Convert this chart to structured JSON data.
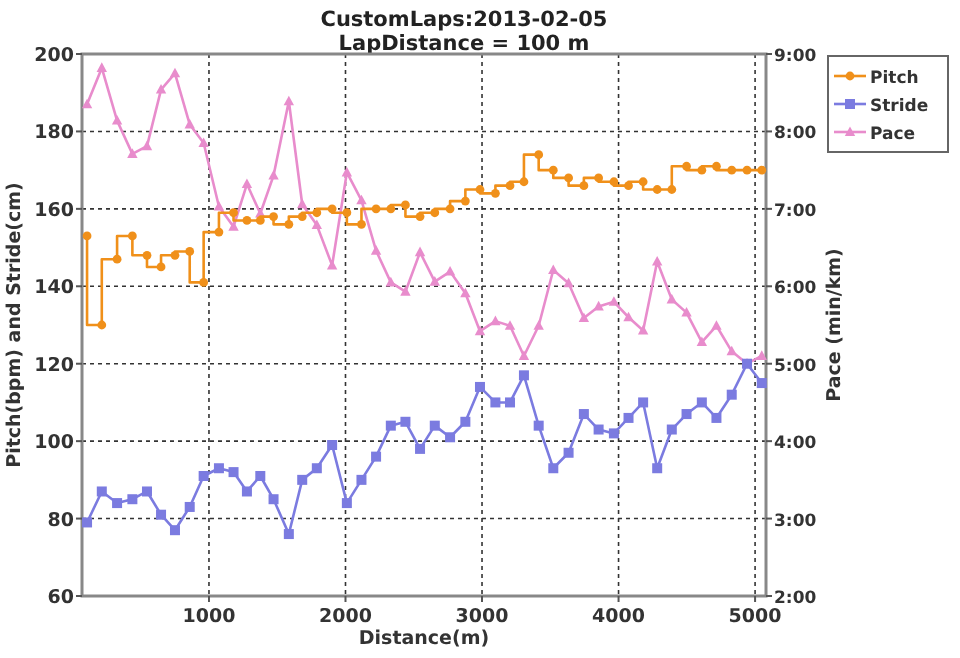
{
  "chart_data": {
    "type": "line",
    "title": "CustomLaps:2013-02-05",
    "subtitle": "LapDistance = 100 m",
    "xlabel": "Distance(m)",
    "ylabel": "Pitch(bpm) and Stride(cm)",
    "y2label": "Pace (min/km)",
    "x": [
      107,
      215,
      327,
      439,
      546,
      649,
      751,
      859,
      961,
      1073,
      1180,
      1278,
      1376,
      1473,
      1585,
      1683,
      1790,
      1902,
      2010,
      2117,
      2224,
      2332,
      2439,
      2546,
      2654,
      2766,
      2878,
      2985,
      3098,
      3205,
      3307,
      3415,
      3522,
      3634,
      3746,
      3854,
      3966,
      4073,
      4180,
      4283,
      4390,
      4498,
      4610,
      4717,
      4829,
      4941,
      5049
    ],
    "xlim": [
      70,
      5080
    ],
    "xticks": [
      1000,
      2000,
      3000,
      4000,
      5000
    ],
    "ylim": [
      60,
      200
    ],
    "yticks": [
      60,
      80,
      100,
      120,
      140,
      160,
      180,
      200
    ],
    "y2lim": [
      2,
      9
    ],
    "y2ticks": [
      {
        "value": 2,
        "label": "2:00"
      },
      {
        "value": 3,
        "label": "3:00"
      },
      {
        "value": 4,
        "label": "4:00"
      },
      {
        "value": 5,
        "label": "5:00"
      },
      {
        "value": 6,
        "label": "6:00"
      },
      {
        "value": 7,
        "label": "7:00"
      },
      {
        "value": 8,
        "label": "8:00"
      },
      {
        "value": 9,
        "label": "9:00"
      }
    ],
    "grid": true,
    "legend": "top right",
    "series": [
      {
        "name": "Pitch",
        "type": "step",
        "marker": "circle",
        "color": "#f0901a",
        "values": [
          153,
          130,
          147,
          153,
          148,
          145,
          148,
          149,
          141,
          154,
          159,
          157,
          157,
          158,
          156,
          158,
          159,
          160,
          159,
          156,
          160,
          160,
          161,
          158,
          159,
          160,
          162,
          165,
          164,
          166,
          167,
          174,
          170,
          168,
          166,
          168,
          167,
          166,
          167,
          165,
          165,
          171,
          170,
          171,
          170,
          170,
          170
        ]
      },
      {
        "name": "Stride",
        "marker": "square",
        "color": "#7b7be0",
        "values": [
          79,
          87,
          84,
          85,
          87,
          81,
          77,
          83,
          91,
          93,
          92,
          87,
          91,
          85,
          76,
          90,
          93,
          99,
          84,
          90,
          96,
          104,
          105,
          98,
          104,
          101,
          105,
          114,
          110,
          110,
          117,
          104,
          93,
          97,
          107,
          103,
          102,
          106,
          110,
          93,
          103,
          107,
          110,
          106,
          112,
          120,
          115
        ]
      },
      {
        "name": "Pace",
        "marker": "triangle",
        "axis": "y2",
        "color": "#e88ccc",
        "values": [
          8.35,
          8.82,
          8.14,
          7.71,
          7.81,
          8.54,
          8.75,
          8.09,
          7.85,
          7.03,
          6.77,
          7.32,
          6.94,
          7.43,
          8.39,
          7.06,
          6.79,
          6.27,
          7.47,
          7.11,
          6.46,
          6.05,
          5.93,
          6.44,
          6.06,
          6.19,
          5.91,
          5.42,
          5.55,
          5.49,
          5.1,
          5.49,
          6.21,
          6.04,
          5.59,
          5.74,
          5.8,
          5.6,
          5.43,
          6.32,
          5.83,
          5.66,
          5.28,
          5.49,
          5.16,
          5.0,
          5.1
        ]
      }
    ]
  }
}
